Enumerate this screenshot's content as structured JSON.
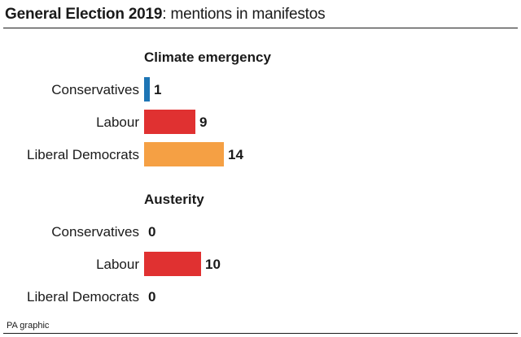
{
  "header": {
    "title_bold": "General Election 2019",
    "title_rest": ": mentions in manifestos"
  },
  "footer": {
    "source": "PA graphic"
  },
  "colors": {
    "Conservatives": "#1d75b5",
    "Labour": "#e03131",
    "Liberal Democrats": "#f5a044",
    "text": "#1a1a1a"
  },
  "chart_data": [
    {
      "type": "bar",
      "orientation": "horizontal",
      "title": "Climate emergency",
      "categories": [
        "Conservatives",
        "Labour",
        "Liberal Democrats"
      ],
      "values": [
        1,
        9,
        14
      ],
      "xlim": [
        0,
        14
      ],
      "grid": false
    },
    {
      "type": "bar",
      "orientation": "horizontal",
      "title": "Austerity",
      "categories": [
        "Conservatives",
        "Labour",
        "Liberal Democrats"
      ],
      "values": [
        0,
        10,
        0
      ],
      "xlim": [
        0,
        14
      ],
      "grid": false
    }
  ]
}
